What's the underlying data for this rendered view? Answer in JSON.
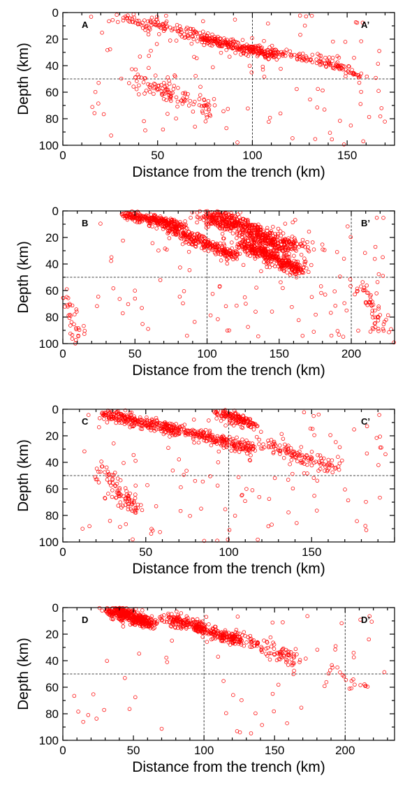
{
  "chart_data": [
    {
      "type": "scatter",
      "panel_left_label": "A",
      "panel_right_label": "A’",
      "xlabel": "Distance from the trench (km)",
      "ylabel": "Depth (km)",
      "xlim": [
        0,
        175
      ],
      "ylim": [
        0,
        100
      ],
      "y_inverted": true,
      "xticks": [
        0,
        50,
        100,
        150
      ],
      "yticks": [
        0,
        20,
        40,
        60,
        80,
        100
      ],
      "reference_lines": {
        "depth": 50,
        "distance": [
          100
        ]
      },
      "marker": "open circle",
      "color": "#ff0000",
      "clusters": [
        {
          "x": [
            30,
            98
          ],
          "y": [
            3,
            27
          ],
          "n": 160,
          "spread": [
            6,
            2.5
          ]
        },
        {
          "x": [
            75,
            112
          ],
          "y": [
            20,
            33
          ],
          "n": 170,
          "spread": [
            3,
            2.5
          ]
        },
        {
          "x": [
            100,
            150
          ],
          "y": [
            27,
            40
          ],
          "n": 110,
          "spread": [
            3,
            3
          ]
        },
        {
          "x": [
            140,
            158
          ],
          "y": [
            38,
            48
          ],
          "n": 40,
          "spread": [
            2,
            2
          ]
        },
        {
          "x": [
            37,
            80
          ],
          "y": [
            50,
            75
          ],
          "n": 110,
          "spread": [
            5,
            6
          ]
        },
        {
          "x": [
            10,
            170
          ],
          "y": [
            2,
            100
          ],
          "n": 110,
          "spread": [
            0,
            0
          ]
        }
      ]
    },
    {
      "type": "scatter",
      "panel_left_label": "B",
      "panel_right_label": "B’",
      "xlabel": "Distance from the trench (km)",
      "ylabel": "Depth (km)",
      "xlim": [
        0,
        230
      ],
      "ylim": [
        0,
        100
      ],
      "y_inverted": true,
      "xticks": [
        0,
        50,
        100,
        150,
        200
      ],
      "yticks": [
        0,
        20,
        40,
        60,
        80,
        100
      ],
      "reference_lines": {
        "depth": 50,
        "distance": [
          100,
          200
        ]
      },
      "marker": "open circle",
      "color": "#ff0000",
      "clusters": [
        {
          "x": [
            42,
            82
          ],
          "y": [
            3,
            10
          ],
          "n": 220,
          "spread": [
            3,
            2
          ]
        },
        {
          "x": [
            65,
            120
          ],
          "y": [
            8,
            35
          ],
          "n": 320,
          "spread": [
            5,
            3
          ]
        },
        {
          "x": [
            100,
            160
          ],
          "y": [
            2,
            28
          ],
          "n": 560,
          "spread": [
            9,
            4
          ]
        },
        {
          "x": [
            125,
            165
          ],
          "y": [
            25,
            45
          ],
          "n": 380,
          "spread": [
            6,
            3.5
          ]
        },
        {
          "x": [
            0,
            12
          ],
          "y": [
            60,
            100
          ],
          "n": 40,
          "spread": [
            4,
            4
          ]
        },
        {
          "x": [
            205,
            230
          ],
          "y": [
            55,
            100
          ],
          "n": 55,
          "spread": [
            5,
            5
          ]
        },
        {
          "x": [
            20,
            225
          ],
          "y": [
            5,
            95
          ],
          "n": 120,
          "spread": [
            0,
            0
          ]
        }
      ]
    },
    {
      "type": "scatter",
      "panel_left_label": "C",
      "panel_right_label": "C’",
      "xlabel": "Distance from the trench (km)",
      "ylabel": "Depth (km)",
      "xlim": [
        0,
        200
      ],
      "ylim": [
        0,
        100
      ],
      "y_inverted": true,
      "xticks": [
        0,
        50,
        100,
        150
      ],
      "yticks": [
        0,
        20,
        40,
        60,
        80,
        100
      ],
      "reference_lines": {
        "depth": 50,
        "distance": [
          100
        ]
      },
      "marker": "open circle",
      "color": "#ff0000",
      "clusters": [
        {
          "x": [
            25,
            75
          ],
          "y": [
            3,
            18
          ],
          "n": 300,
          "spread": [
            5,
            3
          ]
        },
        {
          "x": [
            80,
            115
          ],
          "y": [
            18,
            30
          ],
          "n": 180,
          "spread": [
            4,
            3
          ]
        },
        {
          "x": [
            95,
            115
          ],
          "y": [
            2,
            12
          ],
          "n": 140,
          "spread": [
            4,
            3
          ]
        },
        {
          "x": [
            120,
            165
          ],
          "y": [
            25,
            45
          ],
          "n": 120,
          "spread": [
            5,
            4
          ]
        },
        {
          "x": [
            22,
            45
          ],
          "y": [
            45,
            80
          ],
          "n": 90,
          "spread": [
            4,
            6
          ]
        },
        {
          "x": [
            10,
            195
          ],
          "y": [
            2,
            100
          ],
          "n": 110,
          "spread": [
            0,
            0
          ]
        }
      ]
    },
    {
      "type": "scatter",
      "panel_left_label": "D",
      "panel_right_label": "D’",
      "xlabel": "Distance from the trench (km)",
      "ylabel": "Depth (km)",
      "xlim": [
        0,
        235
      ],
      "ylim": [
        0,
        100
      ],
      "y_inverted": true,
      "xticks": [
        0,
        50,
        100,
        150,
        200
      ],
      "yticks": [
        0,
        20,
        40,
        60,
        80,
        100
      ],
      "reference_lines": {
        "depth": 50,
        "distance": [
          100,
          200
        ]
      },
      "marker": "open circle",
      "color": "#ff0000",
      "clusters": [
        {
          "x": [
            33,
            62
          ],
          "y": [
            1,
            12
          ],
          "n": 420,
          "spread": [
            5,
            3
          ]
        },
        {
          "x": [
            75,
            125
          ],
          "y": [
            8,
            25
          ],
          "n": 320,
          "spread": [
            5,
            3
          ]
        },
        {
          "x": [
            120,
            165
          ],
          "y": [
            20,
            40
          ],
          "n": 100,
          "spread": [
            5,
            4
          ]
        },
        {
          "x": [
            185,
            215
          ],
          "y": [
            45,
            60
          ],
          "n": 18,
          "spread": [
            5,
            4
          ]
        },
        {
          "x": [
            5,
            230
          ],
          "y": [
            5,
            95
          ],
          "n": 55,
          "spread": [
            0,
            0
          ]
        }
      ]
    }
  ]
}
